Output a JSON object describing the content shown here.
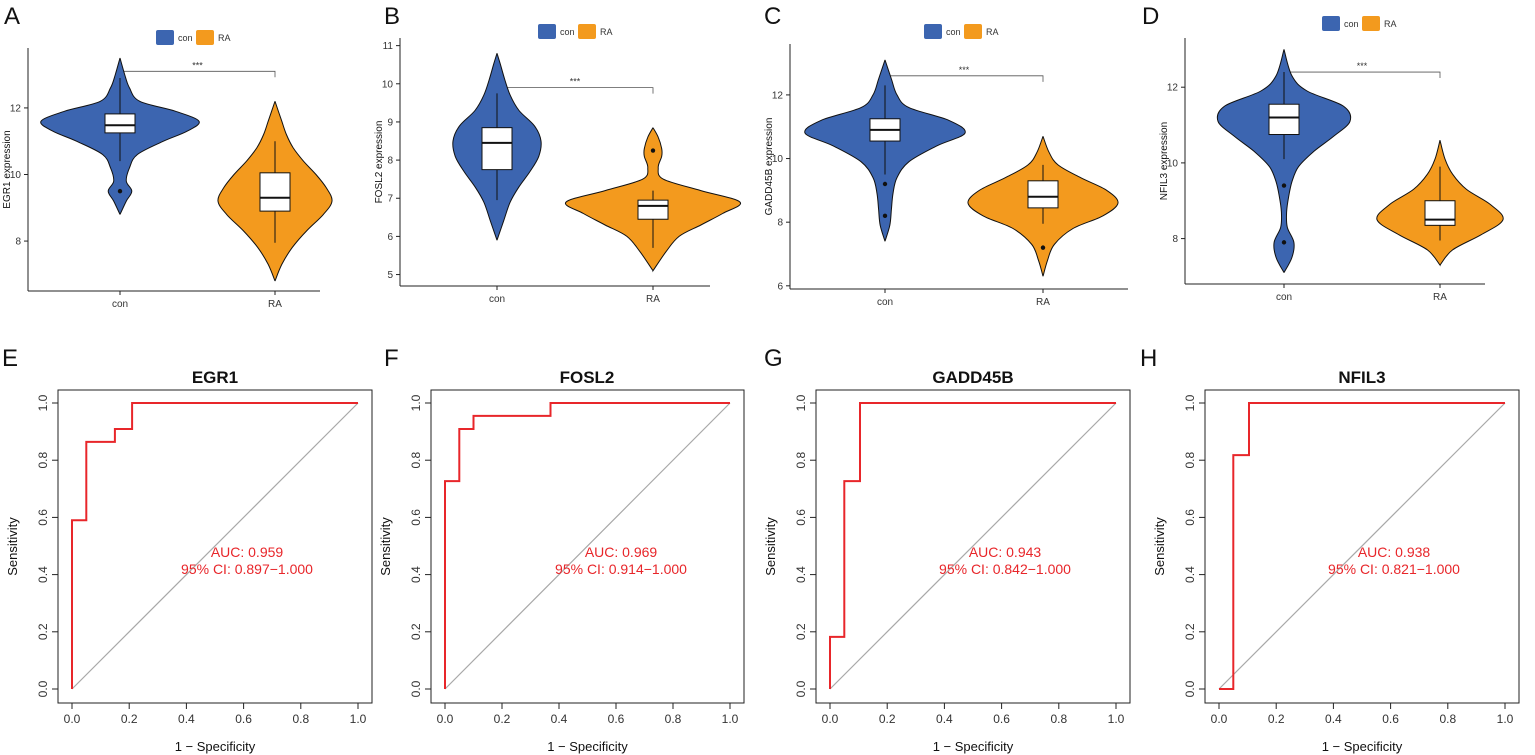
{
  "colors": {
    "con": "#3C65B0",
    "RA": "#F39A1E",
    "roc": "#E8262A",
    "diag": "#A8A8A8",
    "axis": "#222222"
  },
  "chart_data": [
    {
      "type": "violin",
      "panel": "A",
      "gene": "EGR1",
      "ylabel": "EGR1 expression",
      "ylim": [
        6.5,
        13.8
      ],
      "yticks": [
        8,
        10,
        12
      ],
      "categories": [
        "con",
        "RA"
      ],
      "legend": [
        "con",
        "RA"
      ],
      "significance": "***",
      "sig_y": 13.1,
      "groups": [
        {
          "name": "con",
          "box": {
            "q1": 11.25,
            "median": 11.48,
            "q3": 11.82,
            "whisker_low": 10.4,
            "whisker_high": 12.9
          },
          "outliers": [
            9.5
          ],
          "density_y": [
            8.8,
            9.2,
            9.5,
            9.8,
            10.2,
            10.6,
            11.0,
            11.3,
            11.6,
            11.9,
            12.2,
            12.6,
            13.0,
            13.5
          ],
          "density_w": [
            0.0,
            0.08,
            0.15,
            0.08,
            0.12,
            0.22,
            0.55,
            0.85,
            1.0,
            0.7,
            0.25,
            0.12,
            0.06,
            0.0
          ]
        },
        {
          "name": "RA",
          "box": {
            "q1": 8.9,
            "median": 9.3,
            "q3": 10.05,
            "whisker_low": 7.95,
            "whisker_high": 11.0
          },
          "outliers": [],
          "density_y": [
            6.8,
            7.3,
            7.8,
            8.3,
            8.8,
            9.2,
            9.6,
            10.0,
            10.4,
            10.8,
            11.2,
            11.6,
            12.2
          ],
          "density_w": [
            0.0,
            0.12,
            0.3,
            0.55,
            0.85,
            1.0,
            0.9,
            0.72,
            0.5,
            0.32,
            0.2,
            0.12,
            0.0
          ]
        }
      ]
    },
    {
      "type": "violin",
      "panel": "B",
      "gene": "FOSL2",
      "ylabel": "FOSL2 expression",
      "ylim": [
        4.7,
        11.2
      ],
      "yticks": [
        5,
        6,
        7,
        8,
        9,
        10,
        11
      ],
      "categories": [
        "con",
        "RA"
      ],
      "legend": [
        "con",
        "RA"
      ],
      "significance": "***",
      "sig_y": 9.9,
      "groups": [
        {
          "name": "con",
          "box": {
            "q1": 7.75,
            "median": 8.45,
            "q3": 8.85,
            "whisker_low": 6.95,
            "whisker_high": 9.75
          },
          "outliers": [],
          "density_y": [
            5.9,
            6.4,
            6.9,
            7.3,
            7.7,
            8.1,
            8.5,
            8.9,
            9.3,
            9.7,
            10.1,
            10.5,
            10.8
          ],
          "density_w": [
            0.0,
            0.15,
            0.3,
            0.5,
            0.75,
            0.95,
            1.0,
            0.85,
            0.5,
            0.3,
            0.18,
            0.08,
            0.0
          ]
        },
        {
          "name": "RA",
          "box": {
            "q1": 6.45,
            "median": 6.8,
            "q3": 6.95,
            "whisker_low": 5.7,
            "whisker_high": 7.2
          },
          "outliers": [
            8.25
          ],
          "density_y": [
            5.1,
            5.6,
            6.0,
            6.3,
            6.6,
            6.9,
            7.2,
            7.5,
            7.8,
            8.1,
            8.3,
            8.6,
            8.85
          ],
          "density_w": [
            0.0,
            0.15,
            0.3,
            0.55,
            0.8,
            1.0,
            0.55,
            0.12,
            0.06,
            0.1,
            0.1,
            0.06,
            0.0
          ]
        }
      ]
    },
    {
      "type": "violin",
      "panel": "C",
      "gene": "GADD45B",
      "ylabel": "GADD45B expression",
      "ylim": [
        5.9,
        13.6
      ],
      "yticks": [
        6,
        8,
        10,
        12
      ],
      "categories": [
        "con",
        "RA"
      ],
      "legend": [
        "con",
        "RA"
      ],
      "significance": "***",
      "sig_y": 12.6,
      "groups": [
        {
          "name": "con",
          "box": {
            "q1": 10.55,
            "median": 10.9,
            "q3": 11.25,
            "whisker_low": 9.5,
            "whisker_high": 12.3
          },
          "outliers": [
            9.2,
            8.2
          ],
          "density_y": [
            7.4,
            7.9,
            8.4,
            8.9,
            9.4,
            9.9,
            10.4,
            10.8,
            11.2,
            11.6,
            12.0,
            12.5,
            13.1
          ],
          "density_w": [
            0.0,
            0.06,
            0.08,
            0.1,
            0.15,
            0.3,
            0.65,
            1.0,
            0.8,
            0.3,
            0.15,
            0.08,
            0.0
          ]
        },
        {
          "name": "RA",
          "box": {
            "q1": 8.45,
            "median": 8.8,
            "q3": 9.3,
            "whisker_low": 7.95,
            "whisker_high": 9.8
          },
          "outliers": [
            7.2
          ],
          "density_y": [
            6.3,
            6.8,
            7.3,
            7.8,
            8.2,
            8.6,
            9.0,
            9.4,
            9.8,
            10.2,
            10.7
          ],
          "density_w": [
            0.0,
            0.06,
            0.15,
            0.4,
            0.8,
            1.0,
            0.85,
            0.5,
            0.2,
            0.08,
            0.0
          ]
        }
      ]
    },
    {
      "type": "violin",
      "panel": "D",
      "gene": "NFIL3",
      "ylabel": "NFIL3 expression",
      "ylim": [
        6.8,
        13.3
      ],
      "yticks": [
        8,
        10,
        12
      ],
      "categories": [
        "con",
        "RA"
      ],
      "legend": [
        "con",
        "RA"
      ],
      "significance": "***",
      "sig_y": 12.4,
      "groups": [
        {
          "name": "con",
          "box": {
            "q1": 10.75,
            "median": 11.2,
            "q3": 11.55,
            "whisker_low": 10.1,
            "whisker_high": 12.4
          },
          "outliers": [
            9.4,
            7.9
          ],
          "density_y": [
            7.1,
            7.5,
            7.9,
            8.3,
            8.7,
            9.1,
            9.5,
            9.9,
            10.3,
            10.7,
            11.1,
            11.5,
            11.9,
            12.3,
            13.0
          ],
          "density_w": [
            0.0,
            0.12,
            0.15,
            0.05,
            0.04,
            0.07,
            0.12,
            0.22,
            0.45,
            0.75,
            1.0,
            0.9,
            0.35,
            0.12,
            0.0
          ]
        },
        {
          "name": "RA",
          "box": {
            "q1": 8.35,
            "median": 8.5,
            "q3": 9.0,
            "whisker_low": 7.95,
            "whisker_high": 9.9
          },
          "outliers": [],
          "density_y": [
            7.3,
            7.7,
            8.1,
            8.5,
            8.9,
            9.3,
            9.7,
            10.1,
            10.6
          ],
          "density_w": [
            0.0,
            0.2,
            0.65,
            1.0,
            0.8,
            0.42,
            0.2,
            0.08,
            0.0
          ]
        }
      ]
    },
    {
      "type": "roc",
      "panel": "E",
      "title": "EGR1",
      "xlabel": "1 − Specificity",
      "ylabel": "Sensitivity",
      "ticks": [
        "0.0",
        "0.2",
        "0.4",
        "0.6",
        "0.8",
        "1.0"
      ],
      "auc_label": "AUC: 0.959",
      "ci_label": "95% CI: 0.897−1.000",
      "x": [
        0,
        0,
        0.05,
        0.05,
        0.15,
        0.15,
        0.21,
        0.21,
        1
      ],
      "y": [
        0,
        0.59,
        0.59,
        0.864,
        0.864,
        0.909,
        0.909,
        1,
        1
      ]
    },
    {
      "type": "roc",
      "panel": "F",
      "title": "FOSL2",
      "xlabel": "1 − Specificity",
      "ylabel": "Sensitivity",
      "ticks": [
        "0.0",
        "0.2",
        "0.4",
        "0.6",
        "0.8",
        "1.0"
      ],
      "auc_label": "AUC: 0.969",
      "ci_label": "95% CI: 0.914−1.000",
      "x": [
        0,
        0,
        0.05,
        0.05,
        0.1,
        0.1,
        0.37,
        0.37,
        1
      ],
      "y": [
        0,
        0.727,
        0.727,
        0.909,
        0.909,
        0.955,
        0.955,
        1,
        1
      ]
    },
    {
      "type": "roc",
      "panel": "G",
      "title": "GADD45B",
      "xlabel": "1 − Specificity",
      "ylabel": "Sensitivity",
      "ticks": [
        "0.0",
        "0.2",
        "0.4",
        "0.6",
        "0.8",
        "1.0"
      ],
      "auc_label": "AUC: 0.943",
      "ci_label": "95% CI: 0.842−1.000",
      "x": [
        0,
        0,
        0.05,
        0.05,
        0.105,
        0.105,
        1
      ],
      "y": [
        0,
        0.182,
        0.182,
        0.727,
        0.727,
        1,
        1
      ]
    },
    {
      "type": "roc",
      "panel": "H",
      "title": "NFIL3",
      "xlabel": "1 − Specificity",
      "ylabel": "Sensitivity",
      "ticks": [
        "0.0",
        "0.2",
        "0.4",
        "0.6",
        "0.8",
        "1.0"
      ],
      "auc_label": "AUC: 0.938",
      "ci_label": "95% CI: 0.821−1.000",
      "x": [
        0,
        0.05,
        0.05,
        0.105,
        0.105,
        1
      ],
      "y": [
        0,
        0,
        0.818,
        0.818,
        1,
        1
      ]
    }
  ]
}
